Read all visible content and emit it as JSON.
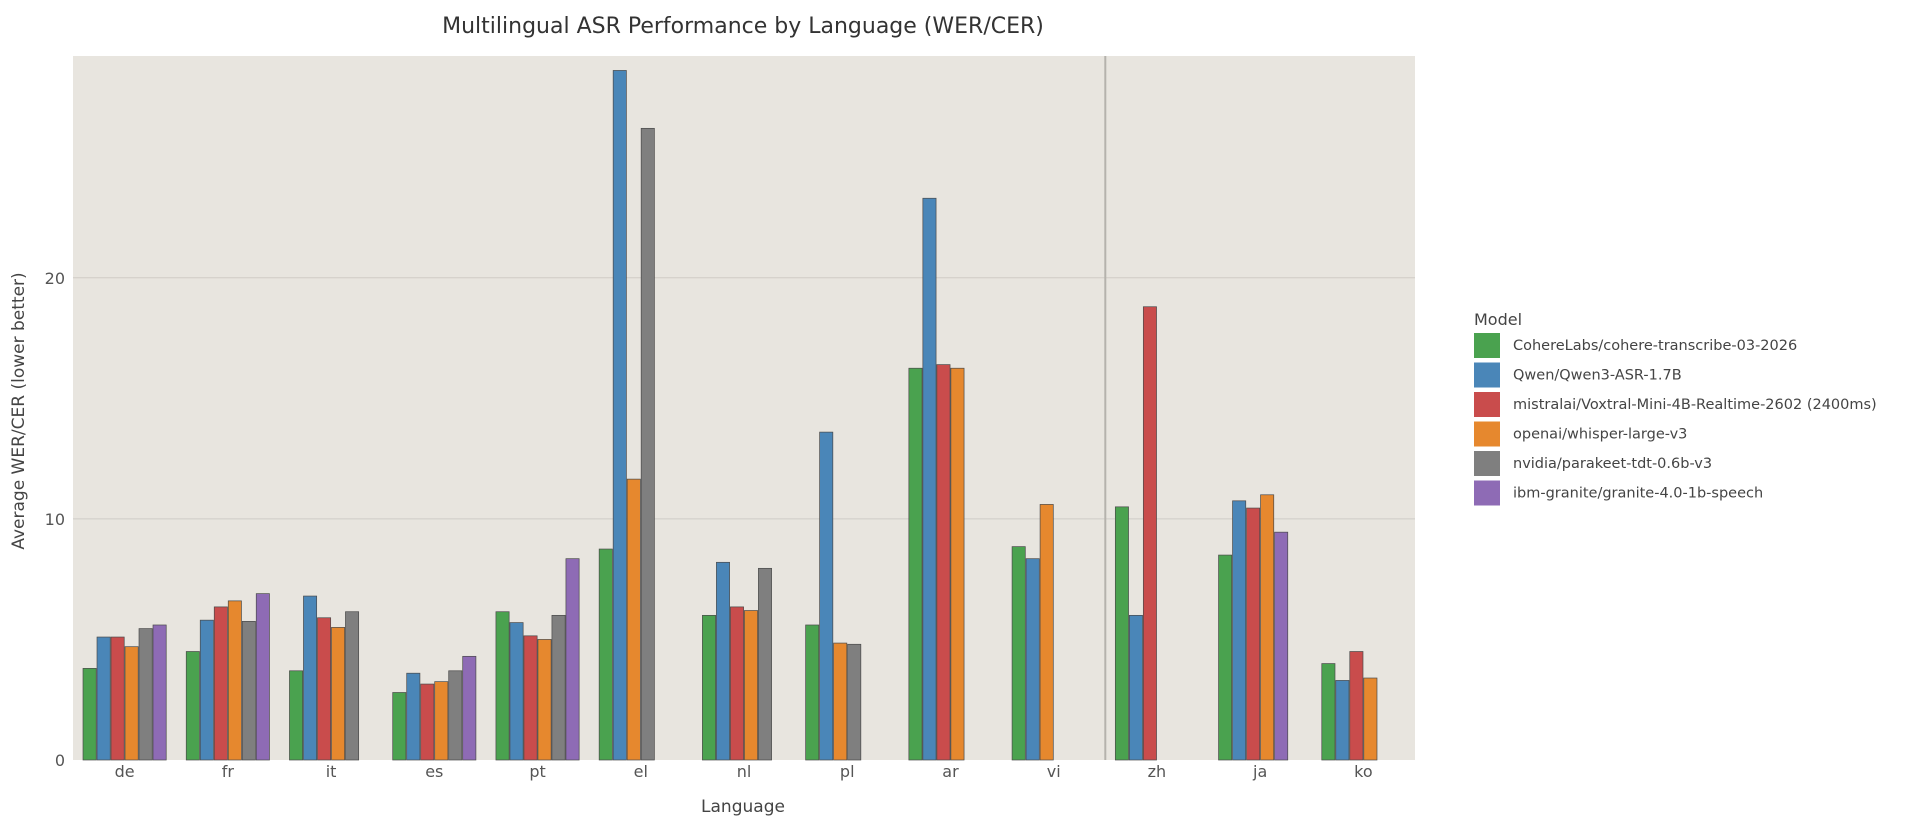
{
  "chart_data": {
    "type": "bar",
    "title": "Multilingual ASR Performance by Language (WER/CER)",
    "xlabel": "Language",
    "ylabel": "Average WER/CER (lower better)",
    "ylim": [
      0,
      29.2
    ],
    "yticks": [
      0,
      10,
      20
    ],
    "grid": true,
    "legend_title": "Model",
    "legend_position": "right",
    "separator_after": "vi",
    "categories": [
      "de",
      "fr",
      "it",
      "es",
      "pt",
      "el",
      "nl",
      "pl",
      "ar",
      "vi",
      "zh",
      "ja",
      "ko"
    ],
    "series": [
      {
        "name": "CohereLabs/cohere-transcribe-03-2026",
        "color": "#4aa24f",
        "values": [
          3.8,
          4.5,
          3.7,
          2.8,
          6.15,
          8.75,
          6.0,
          5.6,
          16.25,
          8.85,
          10.5,
          8.5,
          4.0
        ]
      },
      {
        "name": "Qwen/Qwen3-ASR-1.7B",
        "color": "#4a86b8",
        "values": [
          5.1,
          5.8,
          6.8,
          3.6,
          5.7,
          28.6,
          8.2,
          13.6,
          23.3,
          8.35,
          6.0,
          10.75,
          3.3
        ]
      },
      {
        "name": "mistralai/Voxtral-Mini-4B-Realtime-2602 (2400ms)",
        "color": "#c94c4c",
        "values": [
          5.1,
          6.35,
          5.9,
          3.15,
          5.15,
          null,
          6.35,
          null,
          16.4,
          null,
          18.8,
          10.45,
          4.5
        ]
      },
      {
        "name": "openai/whisper-large-v3",
        "color": "#e6882e",
        "values": [
          4.7,
          6.6,
          5.5,
          3.25,
          5.0,
          11.65,
          6.2,
          4.85,
          16.25,
          10.6,
          null,
          11.0,
          3.4
        ]
      },
      {
        "name": "nvidia/parakeet-tdt-0.6b-v3",
        "color": "#7f7f7f",
        "values": [
          5.45,
          5.75,
          6.15,
          3.7,
          6.0,
          26.2,
          7.95,
          4.8,
          null,
          null,
          null,
          null,
          null
        ]
      },
      {
        "name": "ibm-granite/granite-4.0-1b-speech",
        "color": "#8e6bb5",
        "values": [
          5.6,
          6.9,
          null,
          4.3,
          8.35,
          null,
          null,
          null,
          null,
          null,
          null,
          9.45,
          null
        ]
      }
    ]
  }
}
